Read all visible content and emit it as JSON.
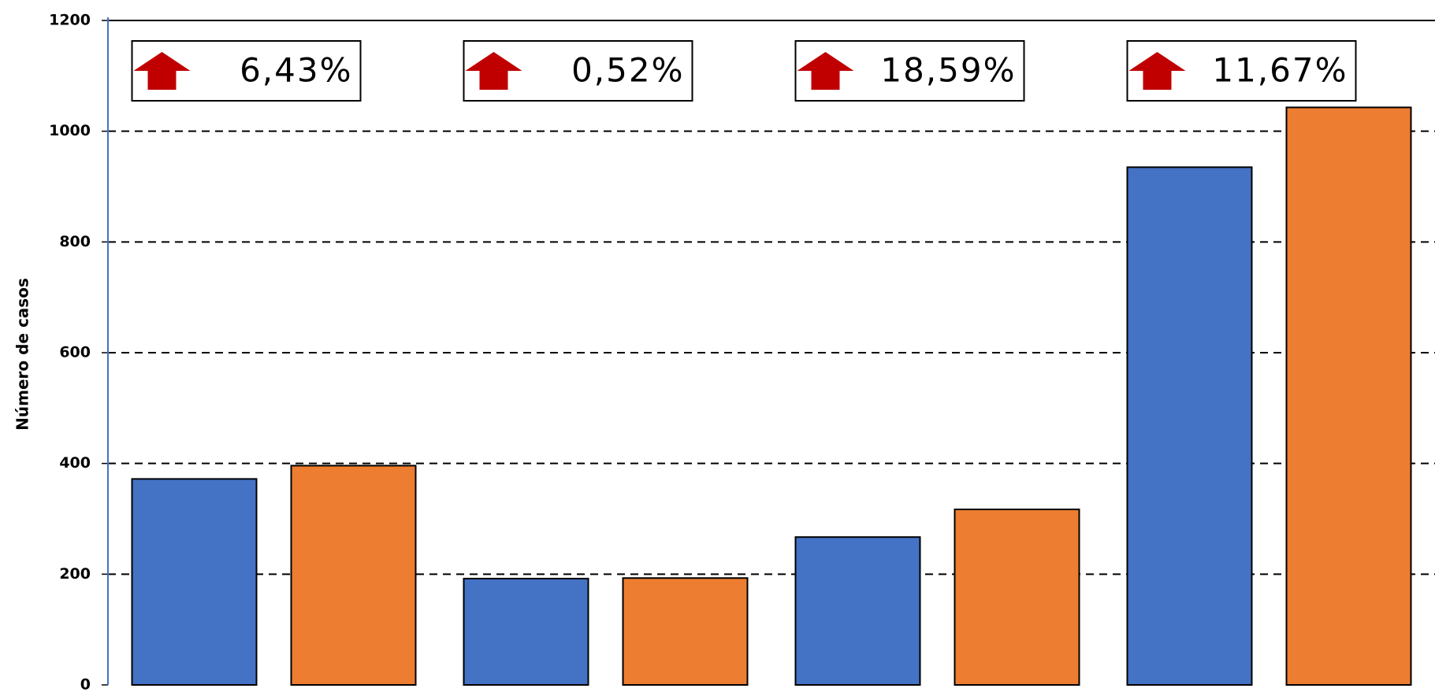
{
  "chart_data": {
    "type": "bar",
    "y_label": "Número de casos",
    "categories": [
      null,
      null,
      null,
      null
    ],
    "series": [
      {
        "color": "#4472c4",
        "values": [
          372,
          192,
          267,
          935
        ]
      },
      {
        "color": "#ed7d31",
        "values": [
          396,
          193,
          317,
          1043
        ]
      }
    ],
    "annotations": [
      "6,43%",
      "0,52%",
      "18,59%",
      "11,67%"
    ],
    "annotation_arrow_color": "#c00000",
    "ylim": [
      0,
      1200
    ],
    "yticks": [
      0,
      200,
      400,
      600,
      800,
      1000,
      1200
    ],
    "grid": true
  }
}
